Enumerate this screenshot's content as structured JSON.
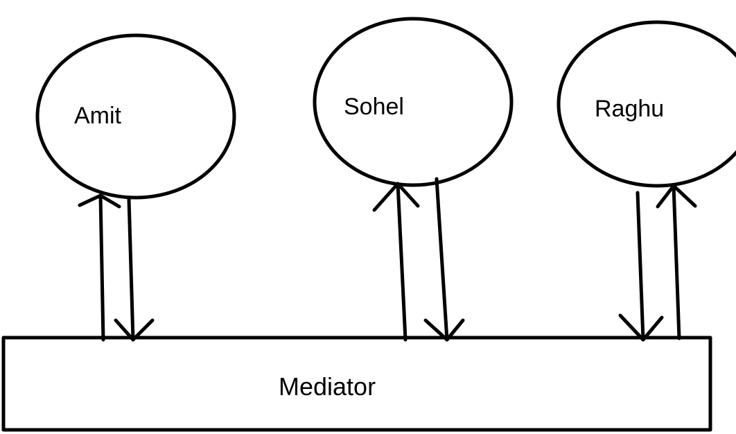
{
  "nodes": {
    "amit": {
      "label": "Amit"
    },
    "sohel": {
      "label": "Sohel"
    },
    "raghu": {
      "label": "Raghu"
    }
  },
  "mediator": {
    "label": "Mediator"
  },
  "colors": {
    "stroke": "#000000",
    "background": "#ffffff"
  }
}
